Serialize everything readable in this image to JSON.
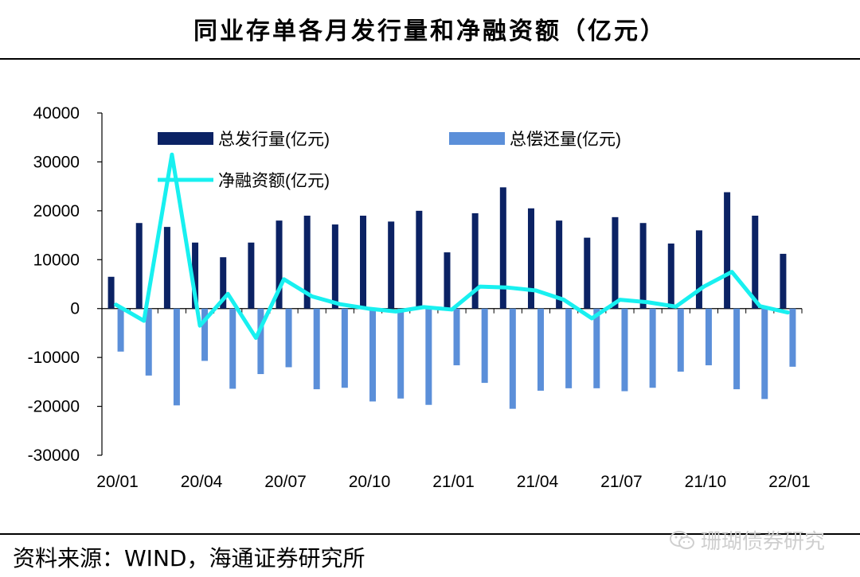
{
  "title": "同业存单各月发行量和净融资额（亿元）",
  "source": "资料来源：WIND，海通证券研究所",
  "watermark": {
    "text": "珊瑚债券研究",
    "icon": "wechat-icon"
  },
  "colors": {
    "issuance": "#0b2264",
    "repayment": "#5b8fd9",
    "net": "#18f0f0",
    "axis": "#000000"
  },
  "chart_data": {
    "type": "bar+line",
    "categories": [
      "20/01",
      "20/02",
      "20/03",
      "20/04",
      "20/05",
      "20/06",
      "20/07",
      "20/08",
      "20/09",
      "20/10",
      "20/11",
      "20/12",
      "21/01",
      "21/02",
      "21/03",
      "21/04",
      "21/05",
      "21/06",
      "21/07",
      "21/08",
      "21/09",
      "21/10",
      "21/11",
      "21/12",
      "22/01"
    ],
    "tick_labels": [
      "20/01",
      "20/04",
      "20/07",
      "20/10",
      "21/01",
      "21/04",
      "21/07",
      "21/10",
      "22/01"
    ],
    "y_ticks": [
      40000,
      30000,
      20000,
      10000,
      0,
      -10000,
      -20000,
      -30000
    ],
    "ylim": [
      -30000,
      40000
    ],
    "series": [
      {
        "name": "总发行量(亿元)",
        "type": "bar",
        "values": [
          6500,
          17500,
          16700,
          13500,
          10500,
          13500,
          18000,
          19000,
          17200,
          19000,
          17800,
          20000,
          11500,
          19500,
          24800,
          20500,
          18000,
          14500,
          18700,
          17500,
          13300,
          16000,
          23800,
          19000,
          11200
        ]
      },
      {
        "name": "总偿还量(亿元)",
        "type": "bar",
        "values": [
          -8800,
          -13700,
          -19800,
          -10700,
          -16400,
          -13400,
          -12000,
          -16500,
          -16200,
          -19000,
          -18400,
          -19700,
          -11600,
          -15200,
          -20500,
          -16800,
          -16300,
          -16300,
          -16900,
          -16200,
          -12900,
          -11600,
          -16500,
          -18500,
          -11900
        ]
      },
      {
        "name": "净融资额(亿元)",
        "type": "line",
        "values": [
          800,
          -2500,
          31500,
          -3500,
          3000,
          -6000,
          6000,
          2500,
          900,
          0,
          -600,
          300,
          -200,
          4500,
          4300,
          3700,
          1800,
          -2000,
          1800,
          1300,
          400,
          4500,
          7500,
          500,
          -800
        ]
      }
    ]
  }
}
